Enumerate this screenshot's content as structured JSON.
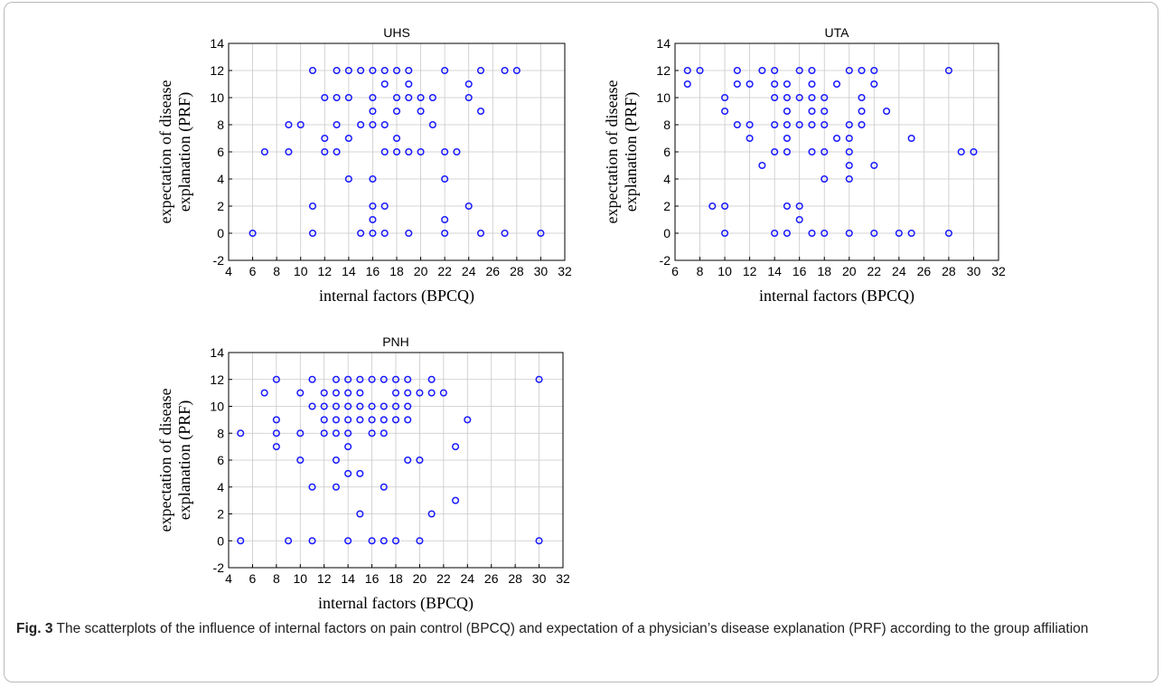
{
  "figure": {
    "caption_label": "Fig. 3",
    "caption_text": "The scatterplots of the influence of internal factors on pain control (BPCQ) and expectation of a physician’s disease explanation (PRF) according to the group affiliation"
  },
  "colors": {
    "marker": "#1a1aff",
    "grid": "#c8c8c8",
    "axis": "#000000"
  },
  "chart_data": [
    {
      "type": "scatter",
      "title": "UHS",
      "xlabel": "internal factors (BPCQ)",
      "ylabel": "expectation of disease explanation (PRF)",
      "xlim": [
        4,
        32
      ],
      "ylim": [
        -2,
        14
      ],
      "xticks": [
        4,
        6,
        8,
        10,
        12,
        14,
        16,
        18,
        20,
        22,
        24,
        26,
        28,
        30,
        32
      ],
      "yticks": [
        -2,
        0,
        2,
        4,
        6,
        8,
        10,
        12,
        14
      ],
      "grid": true,
      "points": [
        [
          6,
          0
        ],
        [
          7,
          6
        ],
        [
          9,
          6
        ],
        [
          9,
          8
        ],
        [
          10,
          8
        ],
        [
          11,
          12
        ],
        [
          11,
          2
        ],
        [
          11,
          0
        ],
        [
          12,
          10
        ],
        [
          12,
          7
        ],
        [
          12,
          6
        ],
        [
          13,
          12
        ],
        [
          13,
          10
        ],
        [
          13,
          8
        ],
        [
          13,
          6
        ],
        [
          14,
          12
        ],
        [
          14,
          10
        ],
        [
          14,
          7
        ],
        [
          14,
          4
        ],
        [
          15,
          12
        ],
        [
          15,
          8
        ],
        [
          15,
          0
        ],
        [
          16,
          12
        ],
        [
          16,
          10
        ],
        [
          16,
          9
        ],
        [
          16,
          8
        ],
        [
          16,
          4
        ],
        [
          16,
          2
        ],
        [
          16,
          1
        ],
        [
          16,
          0
        ],
        [
          17,
          12
        ],
        [
          17,
          11
        ],
        [
          17,
          8
        ],
        [
          17,
          6
        ],
        [
          17,
          2
        ],
        [
          17,
          0
        ],
        [
          18,
          12
        ],
        [
          18,
          10
        ],
        [
          18,
          9
        ],
        [
          18,
          7
        ],
        [
          18,
          6
        ],
        [
          19,
          12
        ],
        [
          19,
          11
        ],
        [
          19,
          10
        ],
        [
          19,
          6
        ],
        [
          19,
          0
        ],
        [
          20,
          10
        ],
        [
          20,
          9
        ],
        [
          20,
          6
        ],
        [
          21,
          10
        ],
        [
          21,
          8
        ],
        [
          22,
          12
        ],
        [
          22,
          6
        ],
        [
          22,
          4
        ],
        [
          22,
          1
        ],
        [
          22,
          0
        ],
        [
          23,
          6
        ],
        [
          24,
          11
        ],
        [
          24,
          10
        ],
        [
          24,
          2
        ],
        [
          25,
          12
        ],
        [
          25,
          9
        ],
        [
          25,
          0
        ],
        [
          27,
          12
        ],
        [
          27,
          0
        ],
        [
          28,
          12
        ],
        [
          30,
          0
        ]
      ]
    },
    {
      "type": "scatter",
      "title": "UTA",
      "xlabel": "internal factors (BPCQ)",
      "ylabel": "expectation of disease explanation (PRF)",
      "xlim": [
        6,
        32
      ],
      "ylim": [
        -2,
        14
      ],
      "xticks": [
        6,
        8,
        10,
        12,
        14,
        16,
        18,
        20,
        22,
        24,
        26,
        28,
        30,
        32
      ],
      "yticks": [
        -2,
        0,
        2,
        4,
        6,
        8,
        10,
        12,
        14
      ],
      "grid": true,
      "points": [
        [
          7,
          12
        ],
        [
          7,
          11
        ],
        [
          8,
          12
        ],
        [
          9,
          2
        ],
        [
          10,
          10
        ],
        [
          10,
          9
        ],
        [
          10,
          2
        ],
        [
          10,
          0
        ],
        [
          11,
          12
        ],
        [
          11,
          11
        ],
        [
          11,
          8
        ],
        [
          12,
          11
        ],
        [
          12,
          8
        ],
        [
          12,
          7
        ],
        [
          13,
          12
        ],
        [
          13,
          5
        ],
        [
          14,
          12
        ],
        [
          14,
          11
        ],
        [
          14,
          10
        ],
        [
          14,
          8
        ],
        [
          14,
          6
        ],
        [
          14,
          0
        ],
        [
          15,
          11
        ],
        [
          15,
          10
        ],
        [
          15,
          9
        ],
        [
          15,
          8
        ],
        [
          15,
          7
        ],
        [
          15,
          6
        ],
        [
          15,
          2
        ],
        [
          15,
          0
        ],
        [
          16,
          12
        ],
        [
          16,
          10
        ],
        [
          16,
          8
        ],
        [
          16,
          2
        ],
        [
          16,
          1
        ],
        [
          17,
          12
        ],
        [
          17,
          11
        ],
        [
          17,
          10
        ],
        [
          17,
          9
        ],
        [
          17,
          8
        ],
        [
          17,
          6
        ],
        [
          17,
          0
        ],
        [
          18,
          10
        ],
        [
          18,
          9
        ],
        [
          18,
          8
        ],
        [
          18,
          6
        ],
        [
          18,
          4
        ],
        [
          18,
          0
        ],
        [
          19,
          11
        ],
        [
          19,
          7
        ],
        [
          20,
          12
        ],
        [
          20,
          8
        ],
        [
          20,
          7
        ],
        [
          20,
          6
        ],
        [
          20,
          5
        ],
        [
          20,
          4
        ],
        [
          20,
          0
        ],
        [
          21,
          12
        ],
        [
          21,
          10
        ],
        [
          21,
          9
        ],
        [
          21,
          8
        ],
        [
          22,
          12
        ],
        [
          22,
          11
        ],
        [
          22,
          5
        ],
        [
          22,
          0
        ],
        [
          23,
          9
        ],
        [
          24,
          0
        ],
        [
          25,
          7
        ],
        [
          25,
          0
        ],
        [
          28,
          12
        ],
        [
          28,
          0
        ],
        [
          29,
          6
        ],
        [
          30,
          6
        ]
      ]
    },
    {
      "type": "scatter",
      "title": "PNH",
      "xlabel": "internal factors (BPCQ)",
      "ylabel": "expectation of disease explanation (PRF)",
      "xlim": [
        4,
        32
      ],
      "ylim": [
        -2,
        14
      ],
      "xticks": [
        4,
        6,
        8,
        10,
        12,
        14,
        16,
        18,
        20,
        22,
        24,
        26,
        28,
        30,
        32
      ],
      "yticks": [
        -2,
        0,
        2,
        4,
        6,
        8,
        10,
        12,
        14
      ],
      "grid": true,
      "points": [
        [
          5,
          8
        ],
        [
          5,
          0
        ],
        [
          7,
          11
        ],
        [
          8,
          12
        ],
        [
          8,
          9
        ],
        [
          8,
          8
        ],
        [
          8,
          7
        ],
        [
          9,
          0
        ],
        [
          10,
          11
        ],
        [
          10,
          8
        ],
        [
          10,
          6
        ],
        [
          11,
          12
        ],
        [
          11,
          10
        ],
        [
          11,
          4
        ],
        [
          11,
          0
        ],
        [
          12,
          11
        ],
        [
          12,
          10
        ],
        [
          12,
          9
        ],
        [
          12,
          8
        ],
        [
          13,
          12
        ],
        [
          13,
          11
        ],
        [
          13,
          10
        ],
        [
          13,
          9
        ],
        [
          13,
          8
        ],
        [
          13,
          6
        ],
        [
          13,
          4
        ],
        [
          14,
          12
        ],
        [
          14,
          11
        ],
        [
          14,
          10
        ],
        [
          14,
          9
        ],
        [
          14,
          8
        ],
        [
          14,
          7
        ],
        [
          14,
          5
        ],
        [
          14,
          0
        ],
        [
          15,
          12
        ],
        [
          15,
          11
        ],
        [
          15,
          10
        ],
        [
          15,
          9
        ],
        [
          15,
          5
        ],
        [
          15,
          2
        ],
        [
          16,
          12
        ],
        [
          16,
          10
        ],
        [
          16,
          9
        ],
        [
          16,
          8
        ],
        [
          16,
          0
        ],
        [
          17,
          12
        ],
        [
          17,
          10
        ],
        [
          17,
          9
        ],
        [
          17,
          8
        ],
        [
          17,
          4
        ],
        [
          17,
          0
        ],
        [
          18,
          12
        ],
        [
          18,
          11
        ],
        [
          18,
          10
        ],
        [
          18,
          9
        ],
        [
          18,
          0
        ],
        [
          19,
          12
        ],
        [
          19,
          11
        ],
        [
          19,
          10
        ],
        [
          19,
          9
        ],
        [
          19,
          6
        ],
        [
          20,
          11
        ],
        [
          20,
          6
        ],
        [
          20,
          0
        ],
        [
          21,
          12
        ],
        [
          21,
          11
        ],
        [
          21,
          2
        ],
        [
          22,
          11
        ],
        [
          23,
          7
        ],
        [
          23,
          3
        ],
        [
          24,
          9
        ],
        [
          30,
          12
        ],
        [
          30,
          0
        ]
      ]
    }
  ]
}
